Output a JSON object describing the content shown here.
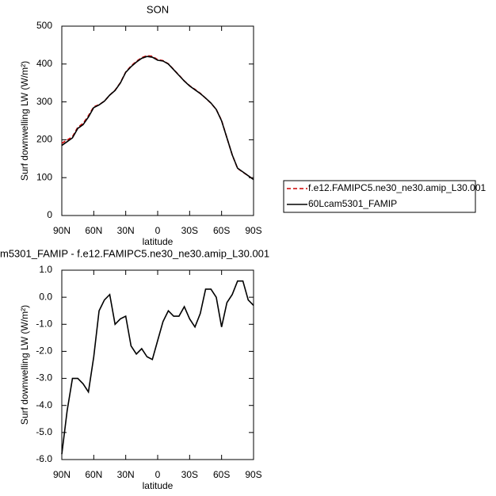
{
  "chart_data": [
    {
      "type": "line",
      "title": "SON",
      "xlabel": "latitude",
      "ylabel": "Surf downwelling LW (W/m²)",
      "x": [
        90,
        85,
        80,
        75,
        70,
        65,
        60,
        55,
        50,
        45,
        40,
        35,
        30,
        25,
        20,
        15,
        10,
        5,
        0,
        -5,
        -10,
        -15,
        -20,
        -25,
        -30,
        -35,
        -40,
        -45,
        -50,
        -55,
        -60,
        -65,
        -70,
        -75,
        -80,
        -85,
        -90
      ],
      "xlim": [
        90,
        -90
      ],
      "xticks": [
        {
          "value": 90,
          "label": "90N"
        },
        {
          "value": 60,
          "label": "60N"
        },
        {
          "value": 30,
          "label": "30N"
        },
        0,
        {
          "value": -30,
          "label": "30S"
        },
        {
          "value": -60,
          "label": "60S"
        },
        {
          "value": -90,
          "label": "90S"
        }
      ],
      "ylim": [
        0,
        500
      ],
      "yticks": [
        0,
        100,
        200,
        300,
        400,
        500
      ],
      "legend": "right",
      "series": [
        {
          "name": "f.e12.FAMIPC5.ne30_ne30.amip_L30.001",
          "color": "#cc0000",
          "dash": "dashed",
          "values": [
            190.8,
            199.2,
            208,
            233,
            243.2,
            263.5,
            287.2,
            292.5,
            302.1,
            317.9,
            331,
            350.8,
            378.7,
            394.8,
            407.1,
            416.9,
            422.2,
            420.3,
            411.6,
            408.9,
            400.5,
            385.7,
            370.7,
            355.35,
            342.8,
            333.1,
            322.6,
            309.7,
            296.7,
            280,
            251.1,
            205.2,
            159.9,
            124.4,
            114.4,
            105.1,
            95.3
          ]
        },
        {
          "name": "60Lcam5301_FAMIP",
          "color": "#000000",
          "dash": "solid",
          "values": [
            185,
            195,
            205,
            230,
            240,
            260,
            285,
            292,
            302,
            318,
            330,
            350,
            378,
            393,
            405,
            415,
            420,
            418,
            410,
            408,
            400,
            385,
            370,
            355,
            342,
            332,
            322,
            310,
            297,
            280,
            250,
            205,
            160,
            125,
            115,
            105,
            95
          ]
        }
      ]
    },
    {
      "type": "line",
      "title": "m5301_FAMIP - f.e12.FAMIPC5.ne30_ne30.amip_L30.001",
      "xlabel": "latitude",
      "ylabel": "Surf downwelling LW (W/m²)",
      "x": [
        90,
        85,
        80,
        75,
        70,
        65,
        60,
        55,
        50,
        45,
        40,
        35,
        30,
        25,
        20,
        15,
        10,
        5,
        0,
        -5,
        -10,
        -15,
        -20,
        -25,
        -30,
        -35,
        -40,
        -45,
        -50,
        -55,
        -60,
        -65,
        -70,
        -75,
        -80,
        -85,
        -90
      ],
      "xlim": [
        90,
        -90
      ],
      "xticks": [
        {
          "value": 90,
          "label": "90N"
        },
        {
          "value": 60,
          "label": "60N"
        },
        {
          "value": 30,
          "label": "30N"
        },
        0,
        {
          "value": -30,
          "label": "30S"
        },
        {
          "value": -60,
          "label": "60S"
        },
        {
          "value": -90,
          "label": "90S"
        }
      ],
      "ylim": [
        -6,
        1
      ],
      "yticks": [
        {
          "value": -6,
          "label": "-6.0"
        },
        {
          "value": -5,
          "label": "-5.0"
        },
        {
          "value": -4,
          "label": "-4.0"
        },
        {
          "value": -3,
          "label": "-3.0"
        },
        {
          "value": -2,
          "label": "-2.0"
        },
        {
          "value": -1,
          "label": "-1.0"
        },
        {
          "value": 0,
          "label": "0.0"
        },
        {
          "value": 1,
          "label": "1.0"
        }
      ],
      "color": "#000000",
      "dash": "solid",
      "values": [
        -5.8,
        -4.2,
        -3.0,
        -3.0,
        -3.2,
        -3.5,
        -2.2,
        -0.5,
        -0.1,
        0.1,
        -1.0,
        -0.8,
        -0.7,
        -1.8,
        -2.1,
        -1.9,
        -2.2,
        -2.3,
        -1.6,
        -0.9,
        -0.5,
        -0.7,
        -0.7,
        -0.35,
        -0.8,
        -1.1,
        -0.6,
        0.3,
        0.3,
        0.0,
        -1.1,
        -0.2,
        0.1,
        0.6,
        0.6,
        -0.1,
        -0.3
      ]
    }
  ]
}
